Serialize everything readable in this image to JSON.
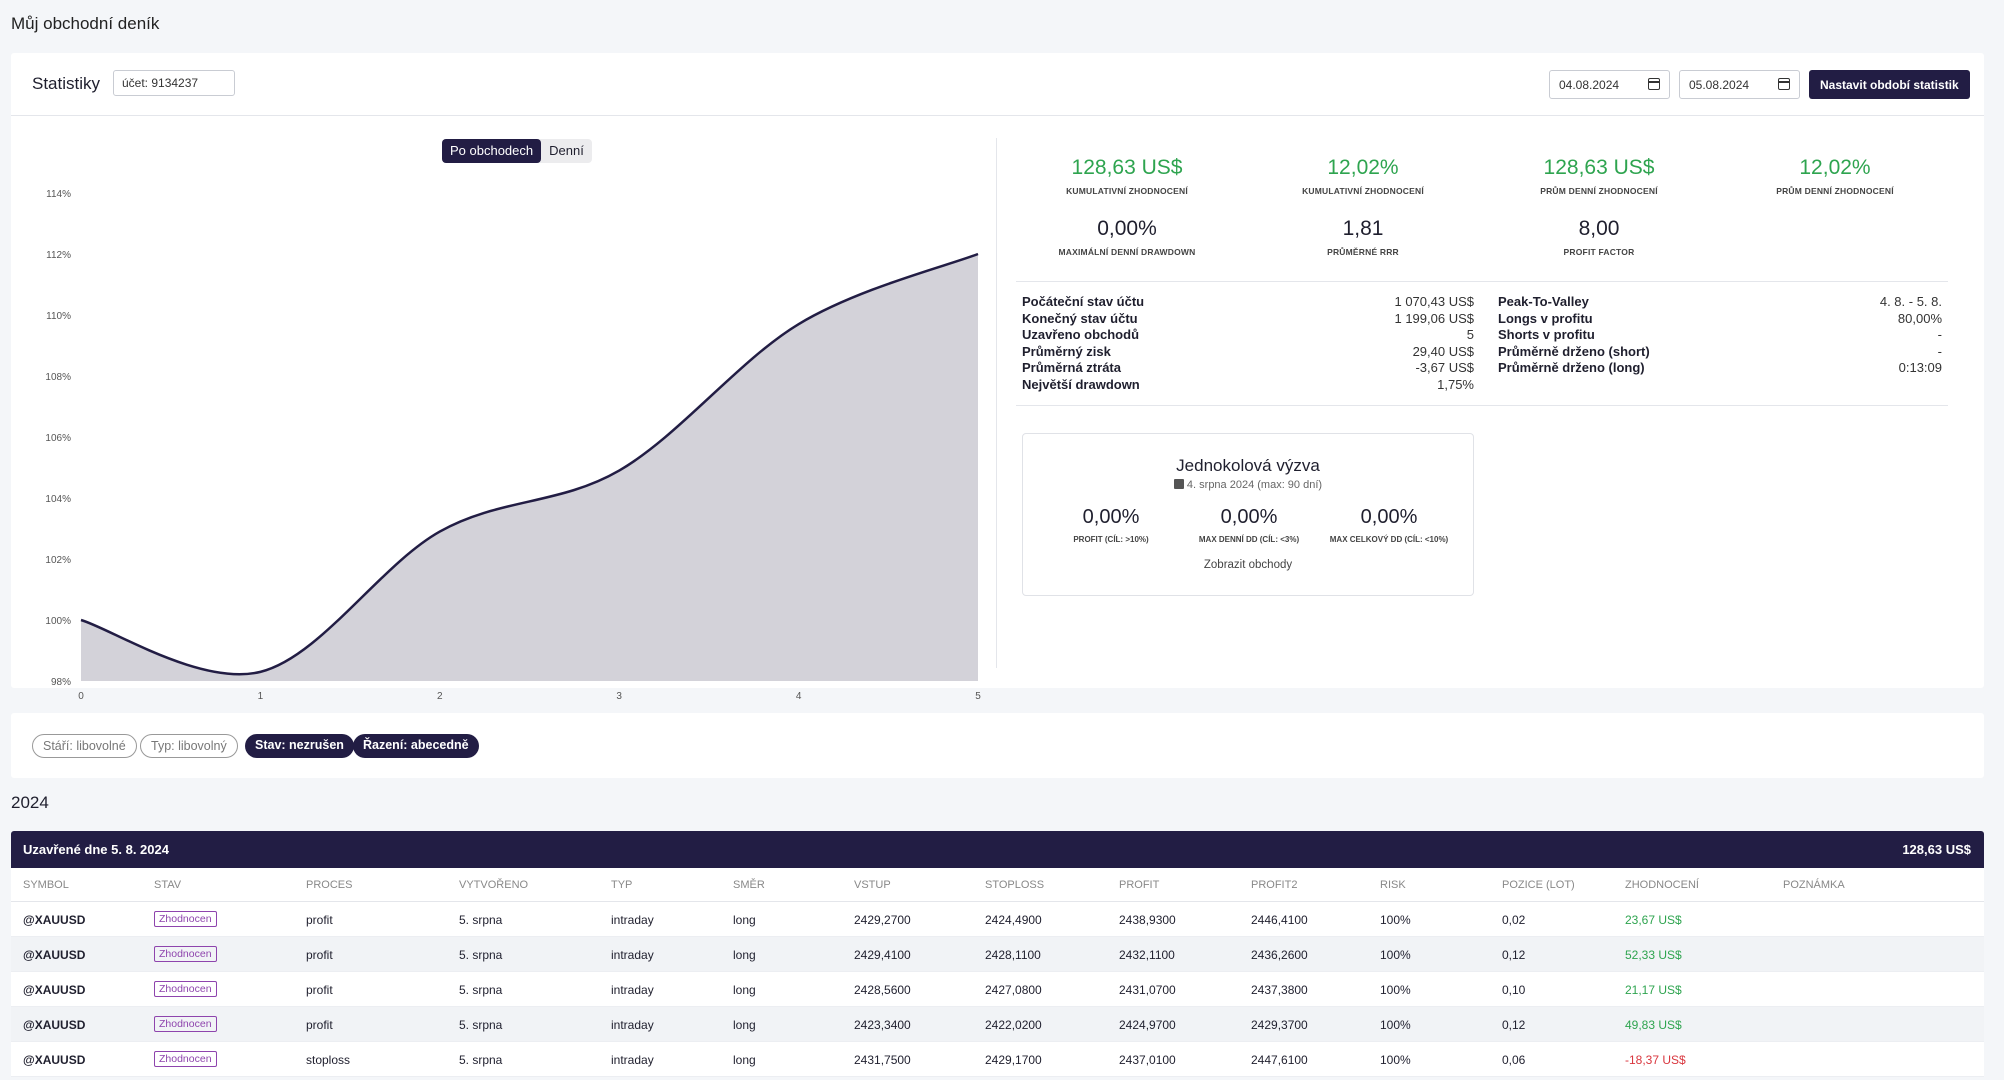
{
  "page": {
    "title": "Můj obchodní deník"
  },
  "stats": {
    "title": "Statistiky",
    "account_value": "účet: 9134237",
    "date_from": "04.08.2024",
    "date_to": "05.08.2024",
    "set_period_label": "Nastavit období statistik",
    "chart_toggle": {
      "trades_label": "Po obchodech",
      "daily_label": "Denní",
      "active": "trades"
    },
    "kpis": [
      {
        "value": "128,63 US$",
        "label": "KUMULATIVNÍ ZHODNOCENÍ",
        "positive": true
      },
      {
        "value": "12,02%",
        "label": "KUMULATIVNÍ ZHODNOCENÍ",
        "positive": true
      },
      {
        "value": "128,63 US$",
        "label": "PRŮM DENNÍ ZHODNOCENÍ",
        "positive": true
      },
      {
        "value": "12,02%",
        "label": "PRŮM DENNÍ ZHODNOCENÍ",
        "positive": true
      },
      {
        "value": "0,00%",
        "label": "MAXIMÁLNÍ DENNÍ DRAWDOWN",
        "positive": false
      },
      {
        "value": "1,81",
        "label": "PRŮMĚRNÉ RRR",
        "positive": false
      },
      {
        "value": "8,00",
        "label": "PROFIT FACTOR",
        "positive": false
      }
    ],
    "details_left": [
      {
        "k": "Počáteční stav účtu",
        "v": "1 070,43 US$"
      },
      {
        "k": "Konečný stav účtu",
        "v": "1 199,06 US$"
      },
      {
        "k": "Uzavřeno obchodů",
        "v": "5"
      },
      {
        "k": "Průměrný zisk",
        "v": "29,40 US$"
      },
      {
        "k": "Průměrná ztráta",
        "v": "-3,67 US$"
      },
      {
        "k": "Největší drawdown",
        "v": "1,75%"
      }
    ],
    "details_right": [
      {
        "k": "Peak-To-Valley",
        "v": "4. 8. - 5. 8."
      },
      {
        "k": "Longs v profitu",
        "v": "80,00%"
      },
      {
        "k": "Shorts v profitu",
        "v": "-"
      },
      {
        "k": "Průměrně drženo (short)",
        "v": "-"
      },
      {
        "k": "Průměrně drženo (long)",
        "v": "0:13:09"
      }
    ],
    "challenge": {
      "title": "Jednokolová výzva",
      "subtitle": "4. srpna 2024 (max: 90 dní)",
      "items": [
        {
          "value": "0,00%",
          "label": "PROFIT (CÍL: >10%)"
        },
        {
          "value": "0,00%",
          "label": "MAX DENNÍ DD (CÍL: <3%)"
        },
        {
          "value": "0,00%",
          "label": "MAX CELKOVÝ DD (CÍL: <10%)"
        }
      ],
      "link_label": "Zobrazit obchody"
    }
  },
  "chart_data": {
    "type": "area",
    "x": [
      0,
      1,
      2,
      3,
      4,
      5
    ],
    "values": [
      100.0,
      98.3,
      102.9,
      104.9,
      109.7,
      112.0
    ],
    "ylim": [
      98,
      114
    ],
    "y_ticks": [
      "98%",
      "100%",
      "102%",
      "104%",
      "106%",
      "108%",
      "110%",
      "112%",
      "114%"
    ],
    "x_ticks": [
      "0",
      "1",
      "2",
      "3",
      "4",
      "5"
    ],
    "grid": false,
    "line_color": "#221d44",
    "fill_color": "#d3d2d9"
  },
  "filters": [
    {
      "label": "Stáří: libovolné",
      "active": false
    },
    {
      "label": "Typ: libovolný",
      "active": false
    },
    {
      "label": "Stav: nezrušen",
      "active": true
    },
    {
      "label": "Řazení: abecedně",
      "active": true
    }
  ],
  "year": "2024",
  "table": {
    "group_title": "Uzavřené dne 5. 8. 2024",
    "group_total": "128,63 US$",
    "columns": [
      "SYMBOL",
      "STAV",
      "PROCES",
      "VYTVOŘENO",
      "TYP",
      "SMĚR",
      "VSTUP",
      "STOPLOSS",
      "PROFIT",
      "PROFIT2",
      "RISK",
      "POZICE (LOT)",
      "ZHODNOCENÍ",
      "POZNÁMKA"
    ],
    "rows": [
      {
        "symbol": "@XAUUSD",
        "status": "Zhodnocen",
        "process": "profit",
        "created": "5. srpna",
        "type": "intraday",
        "direction": "long",
        "entry": "2429,2700",
        "stoploss": "2424,4900",
        "profit": "2438,9300",
        "profit2": "2446,4100",
        "risk": "100%",
        "lot": "0,02",
        "result": "23,67 US$",
        "positive": true,
        "note": ""
      },
      {
        "symbol": "@XAUUSD",
        "status": "Zhodnocen",
        "process": "profit",
        "created": "5. srpna",
        "type": "intraday",
        "direction": "long",
        "entry": "2429,4100",
        "stoploss": "2428,1100",
        "profit": "2432,1100",
        "profit2": "2436,2600",
        "risk": "100%",
        "lot": "0,12",
        "result": "52,33 US$",
        "positive": true,
        "note": ""
      },
      {
        "symbol": "@XAUUSD",
        "status": "Zhodnocen",
        "process": "profit",
        "created": "5. srpna",
        "type": "intraday",
        "direction": "long",
        "entry": "2428,5600",
        "stoploss": "2427,0800",
        "profit": "2431,0700",
        "profit2": "2437,3800",
        "risk": "100%",
        "lot": "0,10",
        "result": "21,17 US$",
        "positive": true,
        "note": ""
      },
      {
        "symbol": "@XAUUSD",
        "status": "Zhodnocen",
        "process": "profit",
        "created": "5. srpna",
        "type": "intraday",
        "direction": "long",
        "entry": "2423,3400",
        "stoploss": "2422,0200",
        "profit": "2424,9700",
        "profit2": "2429,3700",
        "risk": "100%",
        "lot": "0,12",
        "result": "49,83 US$",
        "positive": true,
        "note": ""
      },
      {
        "symbol": "@XAUUSD",
        "status": "Zhodnocen",
        "process": "stoploss",
        "created": "5. srpna",
        "type": "intraday",
        "direction": "long",
        "entry": "2431,7500",
        "stoploss": "2429,1700",
        "profit": "2437,0100",
        "profit2": "2447,6100",
        "risk": "100%",
        "lot": "0,06",
        "result": "-18,37 US$",
        "positive": false,
        "note": ""
      }
    ]
  }
}
